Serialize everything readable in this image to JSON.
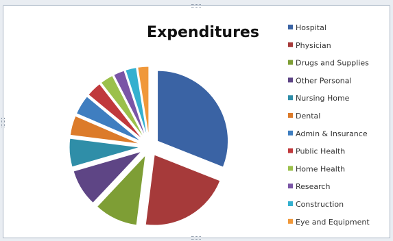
{
  "chart_data": {
    "type": "pie",
    "title": "Expenditures",
    "legend_position": "right",
    "exploded": true,
    "start_angle_deg": 0,
    "direction": "clockwise",
    "slices": [
      {
        "label": "Hospital",
        "value": 31,
        "color": "#3a63a4"
      },
      {
        "label": "Physician",
        "value": 21,
        "color": "#a63a3a"
      },
      {
        "label": "Drugs and Supplies",
        "value": 10,
        "color": "#7e9e35"
      },
      {
        "label": "Other Personal",
        "value": 8.5,
        "color": "#5e4585"
      },
      {
        "label": "Nursing Home",
        "value": 6.5,
        "color": "#2f8ea8"
      },
      {
        "label": "Dental",
        "value": 4.5,
        "color": "#dc7b2a"
      },
      {
        "label": "Admin & Insurance",
        "value": 4.5,
        "color": "#3f7ec0"
      },
      {
        "label": "Public Health",
        "value": 3.5,
        "color": "#c0393c"
      },
      {
        "label": "Home Health",
        "value": 3,
        "color": "#9bc04b"
      },
      {
        "label": "Research",
        "value": 2.5,
        "color": "#7a55a6"
      },
      {
        "label": "Construction",
        "value": 2.5,
        "color": "#34b0cf"
      },
      {
        "label": "Eye and Equipment",
        "value": 2.5,
        "color": "#f0983a"
      }
    ]
  }
}
